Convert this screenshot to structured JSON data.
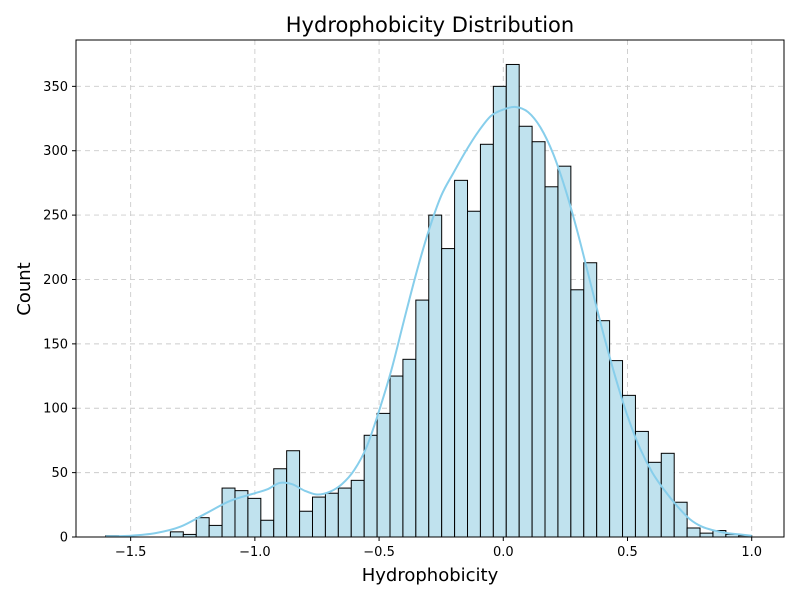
{
  "chart_data": {
    "type": "bar",
    "title": "Hydrophobicity Distribution",
    "xlabel": "Hydrophobicity",
    "ylabel": "Count",
    "xlim": [
      -1.72,
      1.13
    ],
    "ylim": [
      0,
      386
    ],
    "xticks": [
      -1.5,
      -1.0,
      -0.5,
      0.0,
      0.5,
      1.0
    ],
    "xtick_labels": [
      "−1.5",
      "−1.0",
      "−0.5",
      "0.0",
      "0.5",
      "1.0"
    ],
    "yticks": [
      0,
      50,
      100,
      150,
      200,
      250,
      300,
      350
    ],
    "ytick_labels": [
      "0",
      "50",
      "100",
      "150",
      "200",
      "250",
      "300",
      "350"
    ],
    "grid": true,
    "bins": {
      "start": -1.6,
      "end": 1.0,
      "counts": [
        1,
        0,
        0,
        0,
        0,
        4,
        2,
        15,
        9,
        38,
        36,
        30,
        13,
        53,
        67,
        20,
        31,
        34,
        38,
        44,
        79,
        96,
        125,
        138,
        184,
        250,
        224,
        277,
        253,
        305,
        350,
        367,
        319,
        307,
        272,
        288,
        192,
        213,
        168,
        137,
        110,
        82,
        58,
        65,
        27,
        7,
        3,
        5,
        2,
        1
      ]
    },
    "kde": {
      "x": [
        -1.6,
        -1.5,
        -1.4,
        -1.3,
        -1.2,
        -1.1,
        -1.0,
        -0.95,
        -0.9,
        -0.85,
        -0.8,
        -0.75,
        -0.7,
        -0.65,
        -0.6,
        -0.55,
        -0.5,
        -0.45,
        -0.4,
        -0.35,
        -0.3,
        -0.25,
        -0.2,
        -0.15,
        -0.1,
        -0.05,
        0.0,
        0.05,
        0.1,
        0.15,
        0.2,
        0.25,
        0.3,
        0.35,
        0.4,
        0.45,
        0.5,
        0.55,
        0.6,
        0.65,
        0.7,
        0.75,
        0.8,
        0.85,
        0.9,
        0.95,
        1.0
      ],
      "y": [
        0.5,
        1,
        3,
        8,
        18,
        28,
        34,
        37,
        42,
        41,
        36,
        33,
        35,
        41,
        52,
        70,
        98,
        130,
        168,
        205,
        238,
        265,
        283,
        300,
        315,
        327,
        332,
        334,
        330,
        318,
        298,
        270,
        236,
        198,
        160,
        125,
        94,
        69,
        50,
        36,
        24,
        14,
        8,
        5,
        3,
        2,
        1
      ]
    },
    "colors": {
      "bar_fill": "#c0e2ee",
      "bar_edge": "#000000",
      "kde_line": "#87ceeb",
      "grid": "#cccccc"
    }
  }
}
